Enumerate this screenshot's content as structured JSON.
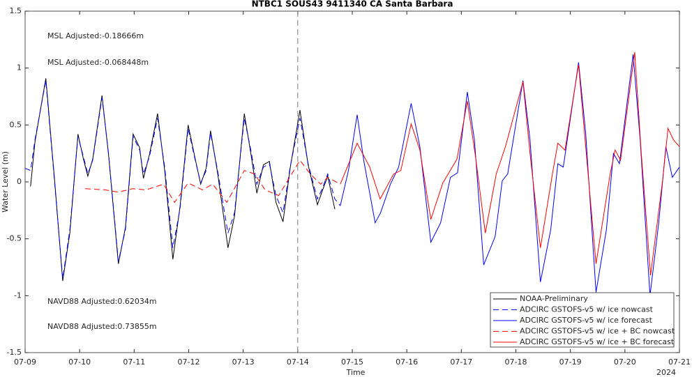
{
  "chart_data": {
    "type": "line",
    "title": "NTBC1 SOUS43 9411340 CA Santa Barbara",
    "xlabel": "Time",
    "ylabel": "Water Level (m)",
    "x_sublabel": "2024",
    "xlim": [
      0,
      12
    ],
    "ylim": [
      -1.5,
      1.5
    ],
    "xticks": [
      {
        "value": 0,
        "label": "07-09"
      },
      {
        "value": 1,
        "label": "07-10"
      },
      {
        "value": 2,
        "label": "07-11"
      },
      {
        "value": 3,
        "label": "07-12"
      },
      {
        "value": 4,
        "label": "07-13"
      },
      {
        "value": 5,
        "label": "07-14"
      },
      {
        "value": 6,
        "label": "07-15"
      },
      {
        "value": 7,
        "label": "07-16"
      },
      {
        "value": 8,
        "label": "07-17"
      },
      {
        "value": 9,
        "label": "07-18"
      },
      {
        "value": 10,
        "label": "07-19"
      },
      {
        "value": 11,
        "label": "07-20"
      },
      {
        "value": 12,
        "label": "07-21"
      }
    ],
    "yticks": [
      -1.5,
      -1,
      -0.5,
      0,
      0.5,
      1,
      1.5
    ],
    "vline": 5,
    "legend": "lower right",
    "annotations": [
      {
        "text": "MSL Adjusted:-0.18666m",
        "color": "#0000ff"
      },
      {
        "text": "MSL Adjusted:-0.068448m",
        "color": "#ff0000"
      },
      {
        "text": "NAVD88 Adjusted:0.62034m",
        "color": "#0000ff"
      },
      {
        "text": "NAVD88 Adjusted:0.73855m",
        "color": "#ff0000"
      }
    ],
    "series": [
      {
        "name": "NOAA-Preliminary",
        "color": "#000000",
        "dash": false,
        "x": [
          0.1,
          0.18,
          0.38,
          0.54,
          0.69,
          0.82,
          0.97,
          1.07,
          1.15,
          1.24,
          1.41,
          1.53,
          1.71,
          1.84,
          1.98,
          2.1,
          2.17,
          2.28,
          2.43,
          2.56,
          2.71,
          2.84,
          2.99,
          3.12,
          3.22,
          3.32,
          3.4,
          3.53,
          3.72,
          3.84,
          4.02,
          4.14,
          4.25,
          4.37,
          4.48,
          4.6,
          4.73,
          4.86,
          5.04,
          5.19,
          5.36,
          5.45,
          5.55,
          5.68
        ],
        "values": [
          -0.04,
          0.35,
          0.91,
          0.02,
          -0.87,
          -0.45,
          0.42,
          0.2,
          0.05,
          0.2,
          0.76,
          0.24,
          -0.72,
          -0.4,
          0.42,
          0.3,
          0.03,
          0.24,
          0.6,
          0.1,
          -0.68,
          -0.22,
          0.5,
          0.2,
          -0.02,
          0.12,
          0.45,
          0.08,
          -0.58,
          -0.3,
          0.6,
          0.25,
          -0.1,
          0.15,
          0.18,
          -0.18,
          -0.35,
          0.12,
          0.63,
          0.15,
          -0.2,
          -0.08,
          0.05,
          -0.24
        ]
      },
      {
        "name": "ADCIRC GSTOFS-v5 w/ ice nowcast",
        "color": "#0000ff",
        "dash": true,
        "x": [
          0.0,
          0.1,
          0.18,
          0.38,
          0.54,
          0.69,
          0.82,
          0.97,
          1.07,
          1.15,
          1.24,
          1.41,
          1.53,
          1.71,
          1.84,
          1.98,
          2.1,
          2.17,
          2.28,
          2.43,
          2.56,
          2.71,
          2.84,
          2.99,
          3.12,
          3.22,
          3.32,
          3.4,
          3.53,
          3.72,
          3.84,
          4.02,
          4.14,
          4.25,
          4.37,
          4.48,
          4.6,
          4.73,
          4.86,
          5.04,
          5.19,
          5.36,
          5.45,
          5.55,
          5.68,
          5.78
        ],
        "values": [
          0.12,
          0.1,
          0.37,
          0.89,
          0.0,
          -0.85,
          -0.42,
          0.4,
          0.22,
          0.07,
          0.19,
          0.74,
          0.25,
          -0.7,
          -0.42,
          0.4,
          0.28,
          0.07,
          0.22,
          0.56,
          0.13,
          -0.58,
          -0.24,
          0.47,
          0.19,
          -0.01,
          0.1,
          0.43,
          0.1,
          -0.45,
          -0.27,
          0.56,
          0.28,
          -0.02,
          0.13,
          0.16,
          -0.12,
          -0.27,
          0.13,
          0.56,
          0.16,
          -0.15,
          -0.06,
          0.07,
          -0.15,
          -0.21
        ]
      },
      {
        "name": "ADCIRC GSTOFS-v5 w/ ice forecast",
        "color": "#0000ff",
        "dash": false,
        "x": [
          5.78,
          5.93,
          6.09,
          6.21,
          6.42,
          6.52,
          6.7,
          6.85,
          7.08,
          7.24,
          7.44,
          7.62,
          7.8,
          7.93,
          8.11,
          8.24,
          8.41,
          8.62,
          8.75,
          8.85,
          9.13,
          9.26,
          9.45,
          9.64,
          9.77,
          9.87,
          10.15,
          10.28,
          10.47,
          10.66,
          10.79,
          10.9,
          11.15,
          11.28,
          11.46,
          11.62,
          11.75,
          11.87,
          12.0
        ],
        "values": [
          -0.21,
          0.1,
          0.59,
          0.19,
          -0.36,
          -0.27,
          -0.02,
          0.13,
          0.69,
          0.31,
          -0.53,
          -0.36,
          0.04,
          0.08,
          0.79,
          0.37,
          -0.73,
          -0.48,
          0.01,
          0.07,
          0.89,
          0.37,
          -0.88,
          -0.42,
          0.16,
          0.13,
          1.05,
          0.43,
          -0.97,
          -0.42,
          0.25,
          0.16,
          1.12,
          0.37,
          -1.0,
          -0.36,
          0.31,
          0.04,
          0.13
        ]
      },
      {
        "name": "ADCIRC GSTOFS-v5 w/ ice + BC nowcast",
        "color": "#ff0000",
        "dash": true,
        "x": [
          1.1,
          1.46,
          1.71,
          1.97,
          2.22,
          2.54,
          2.74,
          2.99,
          3.25,
          3.44,
          3.7,
          4.02,
          4.21,
          4.4,
          4.65,
          5.04,
          5.23,
          5.42,
          5.55,
          5.78
        ],
        "values": [
          -0.06,
          -0.07,
          -0.09,
          -0.06,
          -0.07,
          -0.02,
          -0.18,
          -0.01,
          -0.07,
          -0.02,
          -0.18,
          0.1,
          0.07,
          -0.07,
          -0.12,
          0.19,
          0.07,
          -0.02,
          0.04,
          -0.02
        ]
      },
      {
        "name": "ADCIRC GSTOFS-v5 w/ ice + BC forecast",
        "color": "#ff0000",
        "dash": false,
        "x": [
          5.78,
          6.09,
          6.32,
          6.51,
          6.76,
          6.89,
          7.08,
          7.24,
          7.44,
          7.66,
          7.92,
          8.11,
          8.26,
          8.44,
          8.64,
          8.81,
          9.13,
          9.26,
          9.45,
          9.67,
          9.77,
          9.9,
          10.15,
          10.28,
          10.47,
          10.73,
          10.82,
          10.92,
          11.18,
          11.3,
          11.47,
          11.69,
          11.79,
          11.89,
          12.0
        ],
        "values": [
          -0.02,
          0.34,
          0.13,
          -0.15,
          0.07,
          0.1,
          0.51,
          0.28,
          -0.33,
          -0.01,
          0.2,
          0.71,
          0.22,
          -0.45,
          0.07,
          0.31,
          0.88,
          0.25,
          -0.58,
          0.07,
          0.34,
          0.28,
          1.03,
          0.31,
          -0.72,
          0.07,
          0.28,
          0.19,
          1.14,
          0.25,
          -0.82,
          0.01,
          0.47,
          0.37,
          0.31
        ]
      }
    ]
  }
}
